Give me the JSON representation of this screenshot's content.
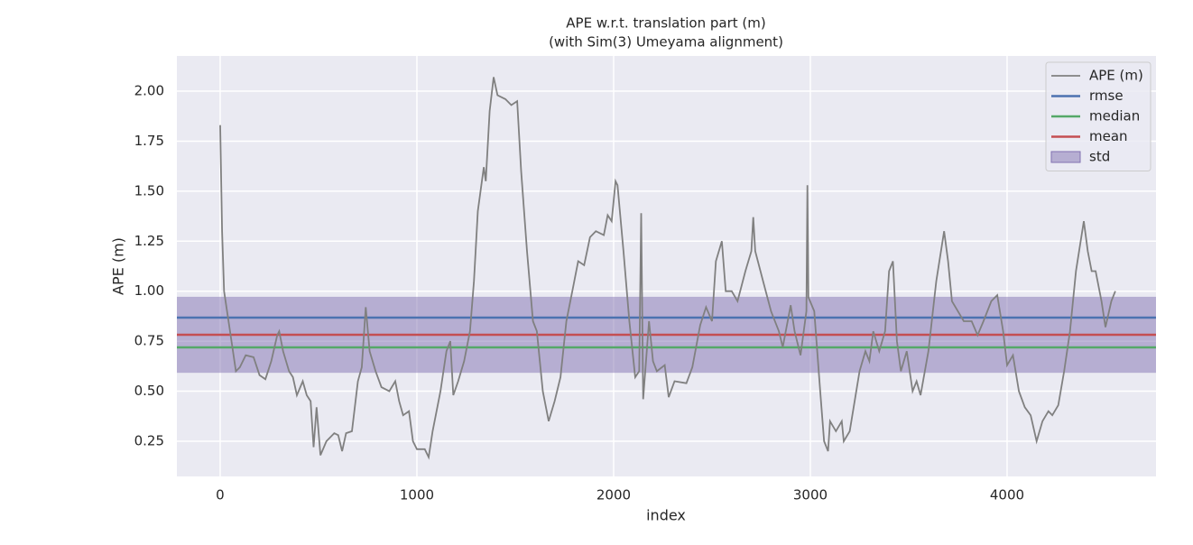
{
  "chart_data": {
    "type": "line",
    "title": "APE w.r.t. translation part (m)",
    "subtitle": "(with Sim(3) Umeyama alignment)",
    "x_label": "index",
    "y_label": "APE (m)",
    "xlim": [
      -220,
      4757
    ],
    "ylim": [
      0.074,
      2.176
    ],
    "xticks": [
      0,
      1000,
      2000,
      3000,
      4000
    ],
    "yticks": [
      0.25,
      {
        "value": 0.5,
        "label": "0.50"
      },
      0.75,
      {
        "value": 1,
        "label": "1.00"
      },
      1.25,
      {
        "value": 1.5,
        "label": "1.50"
      },
      1.75,
      {
        "value": 2,
        "label": "2.00"
      }
    ],
    "grid": true,
    "legend": "upper right",
    "series": [
      {
        "name": "APE (m)",
        "color": "#808080",
        "x": [
          0,
          10,
          20,
          50,
          80,
          100,
          130,
          170,
          200,
          230,
          260,
          290,
          300,
          320,
          350,
          370,
          390,
          420,
          440,
          460,
          475,
          490,
          510,
          540,
          580,
          600,
          620,
          640,
          670,
          700,
          720,
          740,
          760,
          790,
          820,
          860,
          890,
          910,
          930,
          960,
          980,
          1000,
          1040,
          1060,
          1080,
          1120,
          1150,
          1170,
          1185,
          1210,
          1240,
          1270,
          1290,
          1310,
          1340,
          1350,
          1370,
          1390,
          1410,
          1450,
          1480,
          1510,
          1530,
          1560,
          1590,
          1610,
          1640,
          1670,
          1700,
          1730,
          1760,
          1790,
          1820,
          1850,
          1880,
          1910,
          1950,
          1970,
          1990,
          2010,
          2020,
          2050,
          2080,
          2110,
          2130,
          2140,
          2150,
          2180,
          2200,
          2220,
          2260,
          2280,
          2310,
          2370,
          2400,
          2440,
          2470,
          2500,
          2520,
          2550,
          2570,
          2600,
          2630,
          2670,
          2700,
          2710,
          2720,
          2760,
          2800,
          2840,
          2860,
          2900,
          2920,
          2950,
          2980,
          2985,
          2990,
          3020,
          3050,
          3070,
          3090,
          3100,
          3130,
          3160,
          3170,
          3200,
          3250,
          3280,
          3300,
          3320,
          3350,
          3380,
          3400,
          3420,
          3440,
          3460,
          3490,
          3520,
          3540,
          3560,
          3600,
          3640,
          3680,
          3700,
          3720,
          3750,
          3780,
          3820,
          3850,
          3880,
          3920,
          3950,
          3980,
          4000,
          4030,
          4060,
          4090,
          4120,
          4150,
          4180,
          4210,
          4230,
          4260,
          4290,
          4320,
          4350,
          4390,
          4410,
          4430,
          4450,
          4480,
          4500,
          4530,
          4550
        ],
        "values": [
          1.83,
          1.3,
          1.0,
          0.8,
          0.6,
          0.62,
          0.68,
          0.67,
          0.58,
          0.56,
          0.65,
          0.78,
          0.8,
          0.7,
          0.6,
          0.57,
          0.48,
          0.55,
          0.48,
          0.45,
          0.22,
          0.42,
          0.18,
          0.25,
          0.29,
          0.28,
          0.2,
          0.29,
          0.3,
          0.55,
          0.62,
          0.92,
          0.7,
          0.6,
          0.52,
          0.5,
          0.55,
          0.45,
          0.38,
          0.4,
          0.25,
          0.21,
          0.21,
          0.17,
          0.3,
          0.5,
          0.7,
          0.75,
          0.48,
          0.55,
          0.65,
          0.8,
          1.05,
          1.4,
          1.62,
          1.55,
          1.9,
          2.07,
          1.98,
          1.96,
          1.93,
          1.95,
          1.6,
          1.2,
          0.85,
          0.8,
          0.5,
          0.35,
          0.45,
          0.57,
          0.85,
          1.0,
          1.15,
          1.13,
          1.27,
          1.3,
          1.28,
          1.38,
          1.35,
          1.55,
          1.53,
          1.2,
          0.85,
          0.57,
          0.6,
          1.39,
          0.46,
          0.85,
          0.65,
          0.6,
          0.63,
          0.47,
          0.55,
          0.54,
          0.62,
          0.83,
          0.92,
          0.85,
          1.15,
          1.25,
          1.0,
          1.0,
          0.95,
          1.1,
          1.2,
          1.37,
          1.2,
          1.05,
          0.9,
          0.8,
          0.72,
          0.93,
          0.8,
          0.68,
          0.9,
          1.53,
          0.97,
          0.9,
          0.5,
          0.25,
          0.2,
          0.35,
          0.3,
          0.35,
          0.25,
          0.3,
          0.6,
          0.7,
          0.65,
          0.8,
          0.7,
          0.8,
          1.1,
          1.15,
          0.75,
          0.6,
          0.7,
          0.5,
          0.55,
          0.48,
          0.7,
          1.05,
          1.3,
          1.15,
          0.95,
          0.9,
          0.85,
          0.85,
          0.78,
          0.85,
          0.95,
          0.98,
          0.8,
          0.63,
          0.68,
          0.5,
          0.42,
          0.38,
          0.25,
          0.35,
          0.4,
          0.38,
          0.43,
          0.6,
          0.8,
          1.1,
          1.35,
          1.2,
          1.1,
          1.1,
          0.95,
          0.82,
          0.95,
          1.0
        ]
      }
    ],
    "stats": [
      {
        "name": "rmse",
        "color": "#4c72b0",
        "value": 0.868
      },
      {
        "name": "median",
        "color": "#55a868",
        "value": 0.719
      },
      {
        "name": "mean",
        "color": "#c44e52",
        "value": 0.782
      }
    ],
    "std": {
      "name": "std",
      "color": "#8172b2",
      "value": 0.19
    }
  }
}
